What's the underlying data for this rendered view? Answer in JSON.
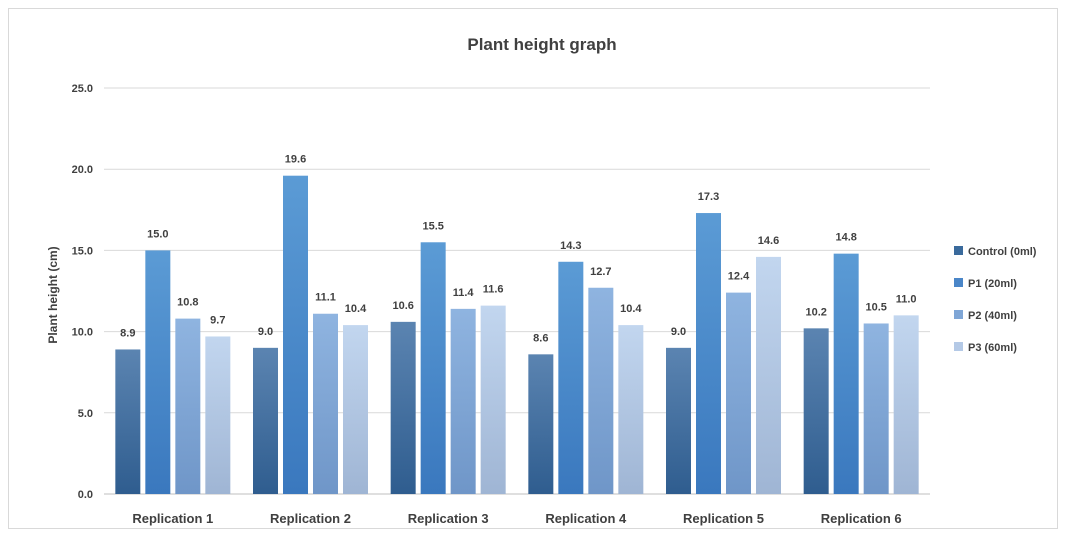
{
  "chart_data": {
    "type": "bar",
    "title": "Plant height graph",
    "xlabel": "",
    "ylabel": "Plant height (cm)",
    "ylim": [
      0,
      25
    ],
    "yticks": [
      "0.0",
      "5.0",
      "10.0",
      "15.0",
      "20.0",
      "25.0"
    ],
    "grid": true,
    "legend_position": "right",
    "categories": [
      "Replication 1",
      "Replication 2",
      "Replication 3",
      "Replication 4",
      "Replication 5",
      "Replication 6"
    ],
    "series": [
      {
        "name": "Control (0ml)",
        "color_top": "#5b84b1",
        "color_bottom": "#2f5d8f",
        "legend_color": "#3a6a9c",
        "values": [
          8.9,
          9.0,
          10.6,
          8.6,
          9.0,
          10.2
        ],
        "labels": [
          "8.9",
          "9.0",
          "10.6",
          "8.6",
          "9.0",
          "10.2"
        ]
      },
      {
        "name": "P1 (20ml)",
        "color_top": "#5b9bd5",
        "color_bottom": "#3a78be",
        "legend_color": "#4a86c8",
        "values": [
          15.0,
          19.6,
          15.5,
          14.3,
          17.3,
          14.8
        ],
        "labels": [
          "15.0",
          "19.6",
          "15.5",
          "14.3",
          "17.3",
          "14.8"
        ]
      },
      {
        "name": "P2 (40ml)",
        "color_top": "#8fb4e0",
        "color_bottom": "#6f96c8",
        "legend_color": "#7fa6d6",
        "values": [
          10.8,
          11.1,
          11.4,
          12.7,
          12.4,
          10.5
        ],
        "labels": [
          "10.8",
          "11.1",
          "11.4",
          "12.7",
          "12.4",
          "10.5"
        ]
      },
      {
        "name": "P3 (60ml)",
        "color_top": "#c2d6ef",
        "color_bottom": "#9fb5d4",
        "legend_color": "#b4c9e6",
        "values": [
          9.7,
          10.4,
          11.6,
          10.4,
          14.6,
          11.0
        ],
        "labels": [
          "9.7",
          "10.4",
          "11.6",
          "10.4",
          "14.6",
          "11.0"
        ]
      }
    ]
  }
}
